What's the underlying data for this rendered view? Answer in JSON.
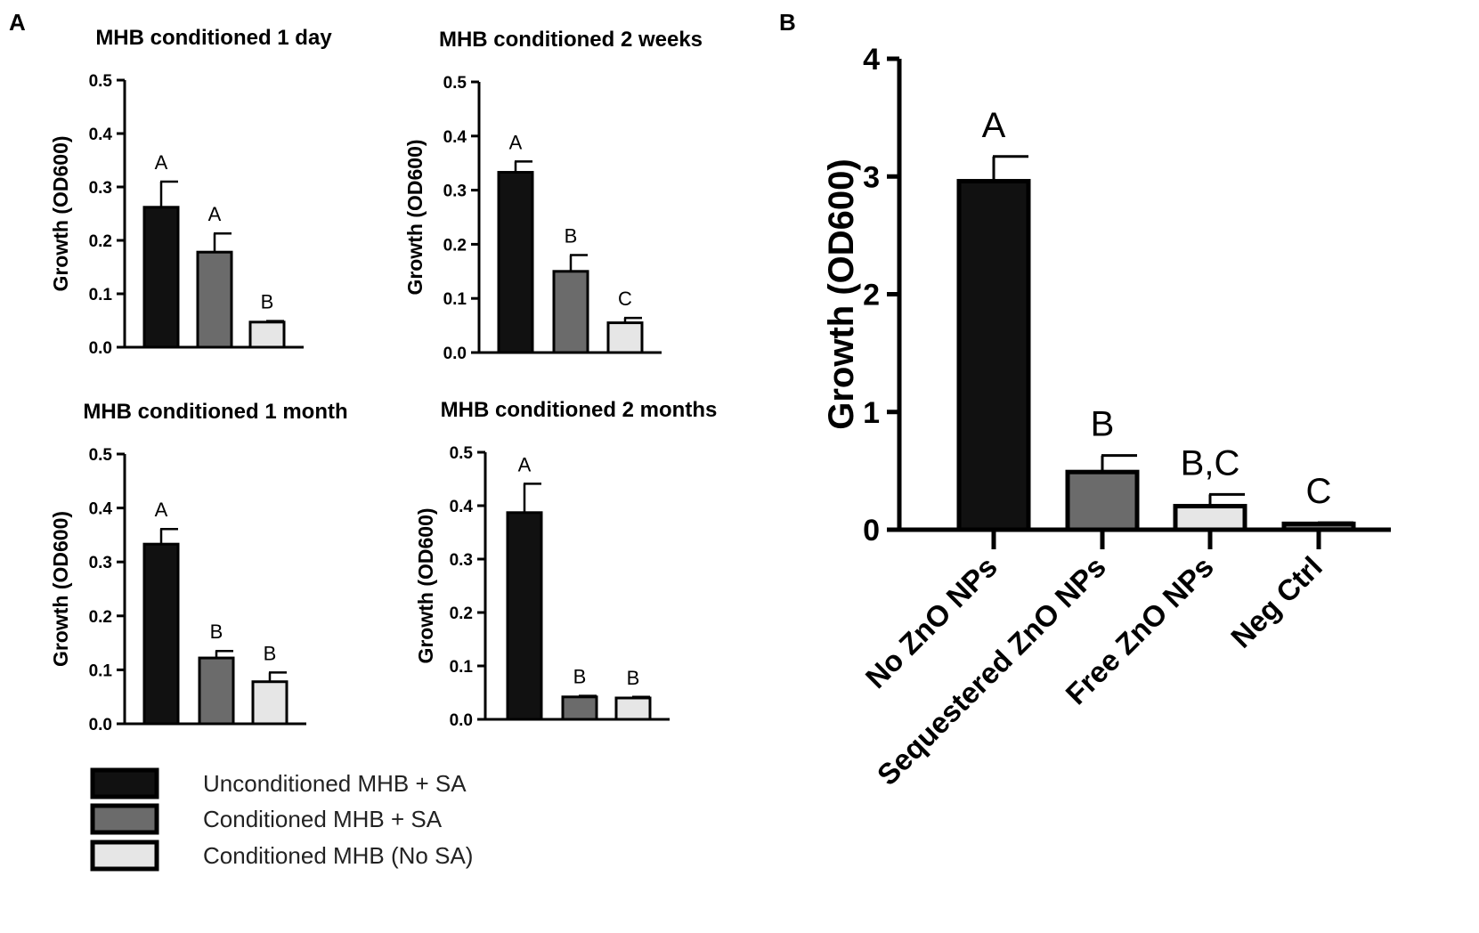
{
  "panel_labels": {
    "a": "A",
    "b": "B"
  },
  "colors": {
    "black": "#111111",
    "dark_gray": "#6b6b6b",
    "light_gray": "#e6e6e6",
    "outline": "#000000"
  },
  "legend": [
    {
      "label": "Unconditioned MHB + SA",
      "color": "#111111"
    },
    {
      "label": "Conditioned MHB + SA",
      "color": "#6b6b6b"
    },
    {
      "label": "Conditioned MHB (No SA)",
      "color": "#e6e6e6"
    }
  ],
  "chart_data": [
    {
      "type": "bar",
      "title": "MHB conditioned 1 day",
      "ylabel": "Growth (OD600)",
      "ylim": [
        0,
        0.5
      ],
      "yticks": [
        "0.0",
        "0.1",
        "0.2",
        "0.3",
        "0.4",
        "0.5"
      ],
      "categories": [
        "Unconditioned MHB + SA",
        "Conditioned MHB + SA",
        "Conditioned MHB (No SA)"
      ],
      "values": [
        0.262,
        0.178,
        0.047
      ],
      "errors": [
        0.048,
        0.035,
        0.002
      ],
      "labels": [
        "A",
        "A",
        "B"
      ]
    },
    {
      "type": "bar",
      "title": "MHB conditioned 2 weeks",
      "ylabel": "Growth (OD600)",
      "ylim": [
        0,
        0.5
      ],
      "yticks": [
        "0.0",
        "0.1",
        "0.2",
        "0.3",
        "0.4",
        "0.5"
      ],
      "categories": [
        "Unconditioned MHB + SA",
        "Conditioned MHB + SA",
        "Conditioned MHB (No SA)"
      ],
      "values": [
        0.333,
        0.15,
        0.055
      ],
      "errors": [
        0.02,
        0.03,
        0.009
      ],
      "labels": [
        "A",
        "B",
        "C"
      ]
    },
    {
      "type": "bar",
      "title": "MHB conditioned 1 month",
      "ylabel": "Growth (OD600)",
      "ylim": [
        0,
        0.5
      ],
      "yticks": [
        "0.0",
        "0.1",
        "0.2",
        "0.3",
        "0.4",
        "0.5"
      ],
      "categories": [
        "Unconditioned MHB + SA",
        "Conditioned MHB + SA",
        "Conditioned MHB (No SA)"
      ],
      "values": [
        0.333,
        0.122,
        0.078
      ],
      "errors": [
        0.028,
        0.013,
        0.017
      ],
      "labels": [
        "A",
        "B",
        "B"
      ]
    },
    {
      "type": "bar",
      "title": "MHB conditioned 2 months",
      "ylabel": "Growth (OD600)",
      "ylim": [
        0,
        0.5
      ],
      "yticks": [
        "0.0",
        "0.1",
        "0.2",
        "0.3",
        "0.4",
        "0.5"
      ],
      "categories": [
        "Unconditioned MHB + SA",
        "Conditioned MHB + SA",
        "Conditioned MHB (No SA)"
      ],
      "values": [
        0.387,
        0.042,
        0.04
      ],
      "errors": [
        0.054,
        0.002,
        0.002
      ],
      "labels": [
        "A",
        "B",
        "B"
      ]
    },
    {
      "type": "bar",
      "title": "",
      "ylabel": "Growth (OD600)",
      "ylim": [
        0,
        4
      ],
      "yticks": [
        "0",
        "1",
        "2",
        "3",
        "4"
      ],
      "categories": [
        "No ZnO NPs",
        "Sequestered ZnO NPs",
        "Free ZnO NPs",
        "Neg Ctrl"
      ],
      "values": [
        2.96,
        0.49,
        0.2,
        0.05
      ],
      "errors": [
        0.21,
        0.14,
        0.1,
        0.01
      ],
      "labels": [
        "A",
        "B",
        "B,C",
        "C"
      ]
    }
  ]
}
